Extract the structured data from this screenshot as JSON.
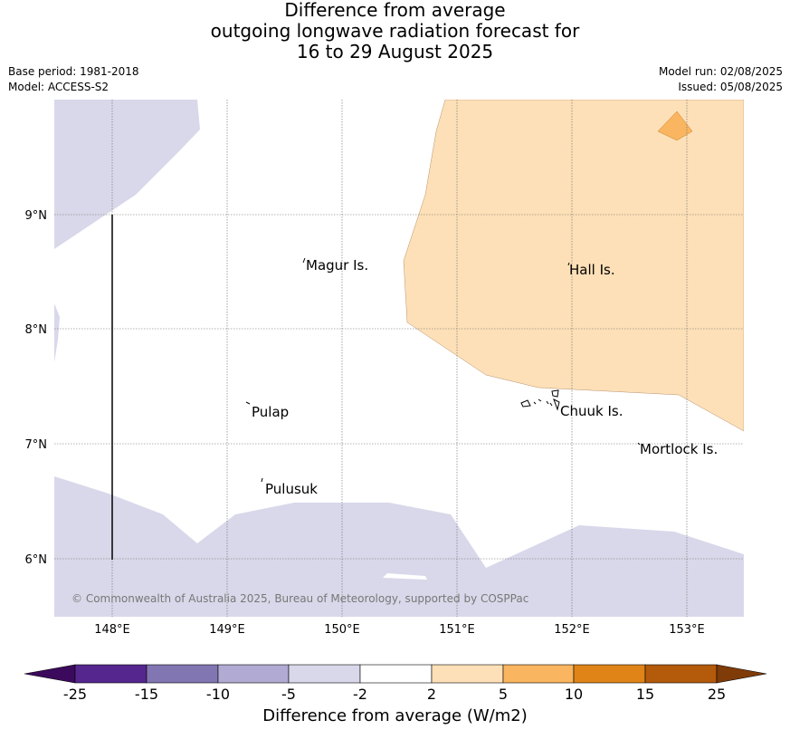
{
  "title": {
    "line1": "Difference from average",
    "line2": "outgoing longwave radiation forecast for",
    "line3": "16 to 29 August 2025"
  },
  "base_period": "Base period: 1981-2018",
  "model": "Model: ACCESS-S2",
  "model_run": "Model run: 02/08/2025",
  "issued": "Issued: 05/08/2025",
  "map": {
    "lon_ticks": [
      "148°E",
      "149°E",
      "150°E",
      "151°E",
      "152°E",
      "153°E"
    ],
    "lat_ticks": [
      "9°N",
      "8°N",
      "7°N",
      "6°N"
    ],
    "places": [
      {
        "name": "Magur Is."
      },
      {
        "name": "Hall Is."
      },
      {
        "name": "Pulap"
      },
      {
        "name": "Chuuk Is."
      },
      {
        "name": "Mortlock Is."
      },
      {
        "name": "Pulusuk"
      }
    ],
    "copyright": "© Commonwealth of Australia 2025, Bureau of Meteorology, supported by COSPPac",
    "colors": {
      "neg_light": "#d8d8ea",
      "pos_light": "#fde0b7",
      "pos_mid": "#f9b55f"
    }
  },
  "colorbar": {
    "title": "Difference from average (W/m2)",
    "ticks": [
      "-25",
      "-15",
      "-10",
      "-5",
      "-2",
      "2",
      "5",
      "10",
      "15",
      "25"
    ],
    "colors": [
      "#3c0a5c",
      "#55278e",
      "#8176b2",
      "#b1abd3",
      "#d8d8ea",
      "#ffffff",
      "#fde0b7",
      "#f9b55f",
      "#e08418",
      "#b35a0b",
      "#7f3b08"
    ]
  }
}
